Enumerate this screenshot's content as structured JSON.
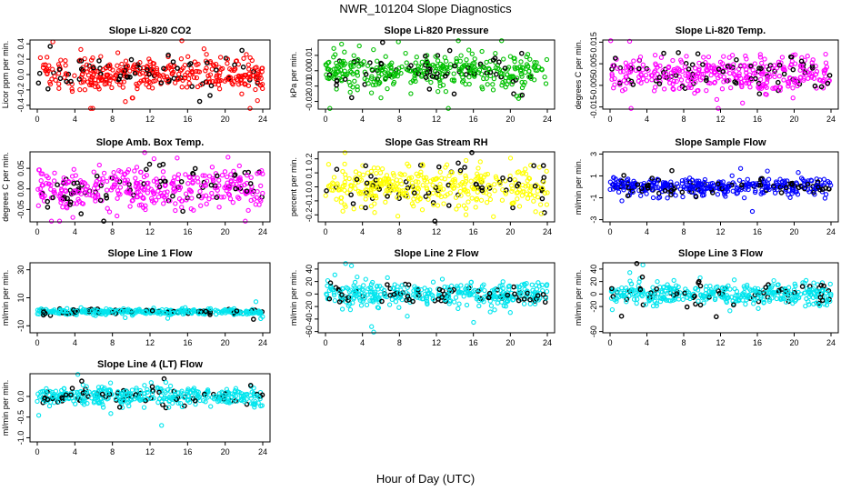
{
  "title": "NWR_101204  Slope Diagnostics",
  "xlabel": "Hour of Day (UTC)",
  "colors": {
    "black": "#000000"
  },
  "chart_data": [
    {
      "type": "scatter",
      "title": "Slope Li-820 CO2",
      "ylabel": "Licor ppm per min.",
      "xlim": [
        0,
        24
      ],
      "ylim": [
        -0.45,
        0.45
      ],
      "xticks": [
        0,
        4,
        8,
        12,
        16,
        20,
        24
      ],
      "xtick_labels": [
        "0",
        "4",
        "8",
        "12",
        "16",
        "20",
        "24"
      ],
      "yticks": [
        -0.4,
        -0.2,
        0.0,
        0.2,
        0.4
      ],
      "ytick_labels": [
        "-0.4",
        "-0.2",
        "0.0",
        "0.2",
        "0.4"
      ],
      "color": "#ff0000",
      "y_scale": 0.12,
      "n": 420,
      "seed": 11
    },
    {
      "type": "scatter",
      "title": "Slope Li-820 Pressure",
      "ylabel": "kPa per min.",
      "xlim": [
        0,
        24
      ],
      "ylim": [
        -0.025,
        0.02
      ],
      "xticks": [
        0,
        4,
        8,
        12,
        16,
        20,
        24
      ],
      "xtick_labels": [
        "0",
        "4",
        "8",
        "12",
        "16",
        "20",
        "24"
      ],
      "yticks": [
        -0.02,
        -0.01,
        0.0,
        0.01
      ],
      "ytick_labels": [
        "-0.02",
        "-0.01",
        "0.00",
        "0.01"
      ],
      "color": "#00c000",
      "y_scale": 0.006,
      "n": 420,
      "seed": 23
    },
    {
      "type": "scatter",
      "title": "Slope Li-820 Temp.",
      "ylabel": "degrees C per min.",
      "xlim": [
        0,
        24
      ],
      "ylim": [
        -0.016,
        0.016
      ],
      "xticks": [
        0,
        4,
        8,
        12,
        16,
        20,
        24
      ],
      "xtick_labels": [
        "0",
        "4",
        "8",
        "12",
        "16",
        "20",
        "24"
      ],
      "yticks": [
        -0.015,
        -0.005,
        0.005,
        0.015
      ],
      "ytick_labels": [
        "-0.015",
        "-0.005",
        "0.005",
        "0.015"
      ],
      "color": "#ff00ff",
      "y_scale": 0.0045,
      "n": 420,
      "seed": 37
    },
    {
      "type": "scatter",
      "title": "Slope Amb. Box Temp.",
      "ylabel": "degrees C per min.",
      "xlim": [
        0,
        24
      ],
      "ylim": [
        -0.08,
        0.09
      ],
      "xticks": [
        0,
        4,
        8,
        12,
        16,
        20,
        24
      ],
      "xtick_labels": [
        "0",
        "4",
        "8",
        "12",
        "16",
        "20",
        "24"
      ],
      "yticks": [
        -0.05,
        0.0,
        0.05
      ],
      "ytick_labels": [
        "-0.05",
        "0.00",
        "0.05"
      ],
      "color": "#ff00ff",
      "y_scale": 0.028,
      "n": 420,
      "seed": 41
    },
    {
      "type": "scatter",
      "title": "Slope Gas Stream RH",
      "ylabel": "percent per min.",
      "xlim": [
        0,
        24
      ],
      "ylim": [
        -0.25,
        0.25
      ],
      "xticks": [
        0,
        4,
        8,
        12,
        16,
        20,
        24
      ],
      "xtick_labels": [
        "0",
        "4",
        "8",
        "12",
        "16",
        "20",
        "24"
      ],
      "yticks": [
        -0.2,
        -0.1,
        0.0,
        0.1,
        0.2
      ],
      "ytick_labels": [
        "-0.2",
        "-0.1",
        "0.0",
        "0.1",
        "0.2"
      ],
      "color": "#ffff00",
      "y_scale": 0.075,
      "n": 420,
      "seed": 53
    },
    {
      "type": "scatter",
      "title": "Slope Sample Flow",
      "ylabel": "ml/min per min.",
      "xlim": [
        0,
        24
      ],
      "ylim": [
        -3.2,
        3.2
      ],
      "xticks": [
        0,
        4,
        8,
        12,
        16,
        20,
        24
      ],
      "xtick_labels": [
        "0",
        "4",
        "8",
        "12",
        "16",
        "20",
        "24"
      ],
      "yticks": [
        -3,
        -1,
        1,
        3
      ],
      "ytick_labels": [
        "-3",
        "-1",
        "1",
        "3"
      ],
      "color": "#0000ff",
      "y_scale": 0.4,
      "n": 420,
      "seed": 67
    },
    {
      "type": "scatter",
      "title": "Slope Line 1 Flow",
      "ylabel": "ml/min per min.",
      "xlim": [
        0,
        24
      ],
      "ylim": [
        -15,
        35
      ],
      "xticks": [
        0,
        4,
        8,
        12,
        16,
        20,
        24
      ],
      "xtick_labels": [
        "0",
        "4",
        "8",
        "12",
        "16",
        "20",
        "24"
      ],
      "yticks": [
        -10,
        10,
        30
      ],
      "ytick_labels": [
        "-10",
        "10",
        "30"
      ],
      "color": "#00e5ee",
      "y_scale": 1.0,
      "n": 420,
      "seed": 71
    },
    {
      "type": "scatter",
      "title": "Slope Line 2 Flow",
      "ylabel": "ml/min per min.",
      "xlim": [
        0,
        24
      ],
      "ylim": [
        -62,
        50
      ],
      "xticks": [
        0,
        4,
        8,
        12,
        16,
        20,
        24
      ],
      "xtick_labels": [
        "0",
        "4",
        "8",
        "12",
        "16",
        "20",
        "24"
      ],
      "yticks": [
        -60,
        -40,
        -20,
        0,
        20,
        40
      ],
      "ytick_labels": [
        "-60",
        "-40",
        "-20",
        "0",
        "20",
        "40"
      ],
      "color": "#00e5ee",
      "y_scale": 9,
      "n": 420,
      "seed": 83
    },
    {
      "type": "scatter",
      "title": "Slope Line 3 Flow",
      "ylabel": "ml/min per min.",
      "xlim": [
        0,
        24
      ],
      "ylim": [
        -62,
        50
      ],
      "xticks": [
        0,
        4,
        8,
        12,
        16,
        20,
        24
      ],
      "xtick_labels": [
        "0",
        "4",
        "8",
        "12",
        "16",
        "20",
        "24"
      ],
      "yticks": [
        -60,
        -20,
        0,
        20,
        40
      ],
      "ytick_labels": [
        "-60",
        "-20",
        "0",
        "20",
        "40"
      ],
      "color": "#00e5ee",
      "y_scale": 9,
      "n": 420,
      "seed": 97
    },
    {
      "type": "scatter",
      "title": "Slope Line 4 (LT) Flow",
      "ylabel": "ml/min per min.",
      "xlim": [
        0,
        24
      ],
      "ylim": [
        -1.1,
        0.55
      ],
      "xticks": [
        0,
        4,
        8,
        12,
        16,
        20,
        24
      ],
      "xtick_labels": [
        "0",
        "4",
        "8",
        "12",
        "16",
        "20",
        "24"
      ],
      "yticks": [
        -1.0,
        -0.5,
        0.0
      ],
      "ytick_labels": [
        "-1.0",
        "-0.5",
        "0.0"
      ],
      "color": "#00e5ee",
      "y_scale": 0.12,
      "n": 420,
      "seed": 101
    }
  ]
}
